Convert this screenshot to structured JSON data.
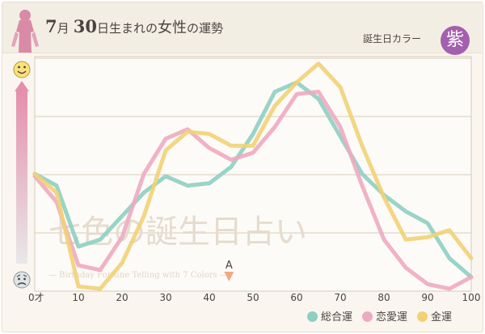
{
  "header": {
    "month": "7",
    "month_unit": "月",
    "day": "30",
    "title_rest": "日生まれの",
    "title_emphasis": "女性",
    "title_suffix": "の運勢",
    "birth_color_label": "誕生日カラー",
    "birth_color_kanji": "紫",
    "birth_color_hex": "#a45fae"
  },
  "watermark": {
    "title": "七色の誕生日占い",
    "subtitle": "— Birthday Fortune Telling with 7 Colors —"
  },
  "icons": {
    "top": "smiley-face-icon",
    "bottom": "worried-face-icon",
    "marker": "triangle-down-marker-icon"
  },
  "chart_data": {
    "type": "line",
    "title": "7月30日生まれの女性の運勢",
    "xlabel": "",
    "ylabel": "",
    "xlim": [
      0,
      100
    ],
    "ylim": [
      0,
      10
    ],
    "x_ticks": [
      "0才",
      "10",
      "20",
      "30",
      "40",
      "50",
      "60",
      "70",
      "80",
      "90",
      "100"
    ],
    "x_tick_values": [
      0,
      10,
      20,
      30,
      40,
      50,
      60,
      70,
      80,
      90,
      100
    ],
    "marker": {
      "label": "A",
      "x": 44.5
    },
    "x": [
      0,
      5,
      10,
      15,
      20,
      25,
      30,
      35,
      40,
      45,
      50,
      55,
      60,
      65,
      70,
      75,
      80,
      85,
      90,
      95,
      100
    ],
    "series": [
      {
        "name": "総合運",
        "color": "#8ecfc2",
        "values": [
          5.0,
          4.5,
          1.9,
          2.2,
          3.2,
          4.2,
          4.9,
          4.5,
          4.6,
          5.3,
          6.7,
          8.5,
          8.9,
          8.2,
          6.6,
          5.0,
          4.1,
          3.4,
          2.9,
          1.4,
          0.6
        ]
      },
      {
        "name": "恋愛運",
        "color": "#eeaac1",
        "values": [
          4.9,
          3.8,
          1.1,
          0.9,
          2.3,
          5.0,
          6.5,
          6.9,
          6.1,
          5.6,
          5.9,
          7.0,
          8.4,
          8.5,
          7.0,
          4.5,
          2.2,
          1.0,
          0.3,
          0.1,
          0.6
        ]
      },
      {
        "name": "金運",
        "color": "#f2d175",
        "values": [
          5.0,
          4.2,
          0.2,
          0.1,
          1.2,
          3.2,
          6.0,
          6.8,
          6.7,
          6.2,
          6.2,
          7.9,
          8.9,
          9.7,
          8.7,
          6.2,
          4.0,
          2.2,
          2.3,
          2.6,
          1.4
        ]
      }
    ]
  }
}
